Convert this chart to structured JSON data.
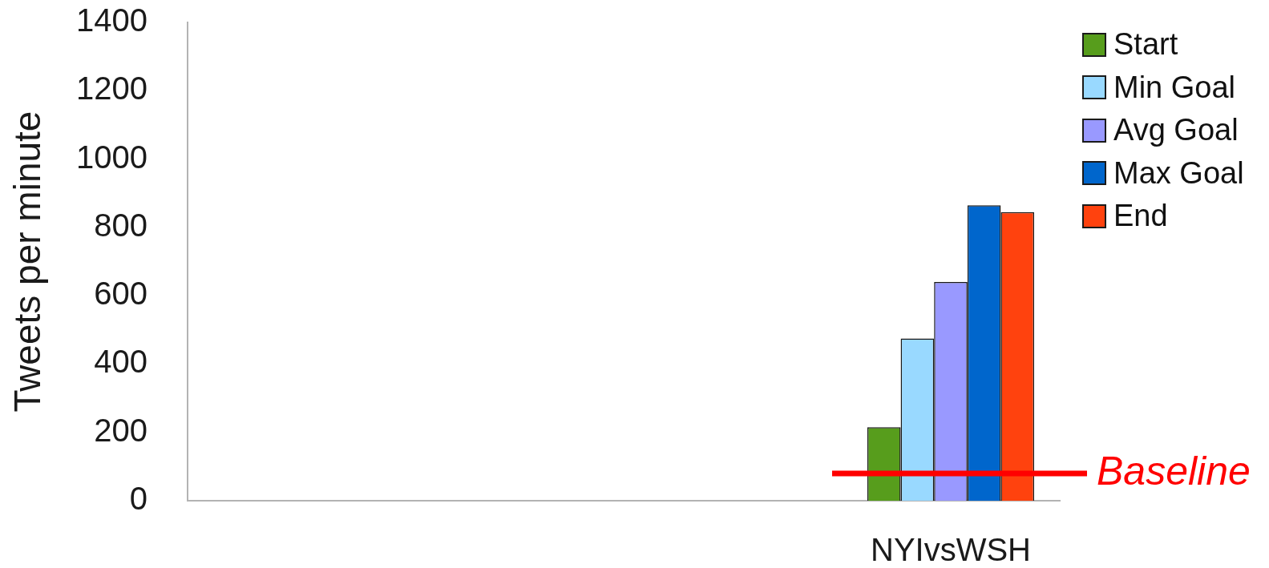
{
  "chart_data": {
    "type": "bar",
    "ylabel": "Tweets per minute",
    "categories": [
      null,
      null,
      null,
      "NYIvsWSH"
    ],
    "series": [
      {
        "name": "Start",
        "color": "#579d1c",
        "values": [
          null,
          null,
          null,
          215
        ]
      },
      {
        "name": "Min Goal",
        "color": "#99d9ff",
        "values": [
          null,
          null,
          null,
          475
        ]
      },
      {
        "name": "Avg Goal",
        "color": "#9999ff",
        "values": [
          null,
          null,
          null,
          640
        ]
      },
      {
        "name": "Max Goal",
        "color": "#0066cc",
        "values": [
          null,
          null,
          null,
          865
        ]
      },
      {
        "name": "End",
        "color": "#ff420e",
        "values": [
          null,
          null,
          null,
          845
        ]
      }
    ],
    "ylim": [
      0,
      1400
    ],
    "yticks": [
      0,
      200,
      400,
      600,
      800,
      1000,
      1200,
      1400
    ],
    "ref_lines": [
      {
        "axis": "y",
        "value": 80,
        "label": "Baseline",
        "color": "#ff0000"
      }
    ],
    "grid": false,
    "legend": "top right"
  }
}
